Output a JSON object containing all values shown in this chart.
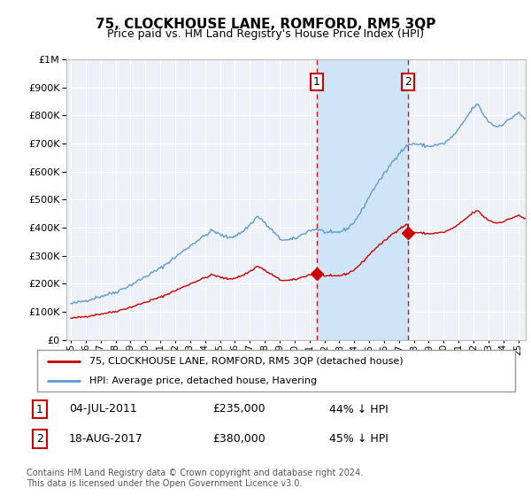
{
  "title": "75, CLOCKHOUSE LANE, ROMFORD, RM5 3QP",
  "subtitle": "Price paid vs. HM Land Registry's House Price Index (HPI)",
  "hpi_color": "#5b9bd5",
  "sale_color": "#cc0000",
  "vline_color": "#cc0000",
  "legend_line1": "75, CLOCKHOUSE LANE, ROMFORD, RM5 3QP (detached house)",
  "legend_line2": "HPI: Average price, detached house, Havering",
  "annotation1_date": "04-JUL-2011",
  "annotation1_price": "£235,000",
  "annotation1_hpi": "44% ↓ HPI",
  "annotation2_date": "18-AUG-2017",
  "annotation2_price": "£380,000",
  "annotation2_hpi": "45% ↓ HPI",
  "footer": "Contains HM Land Registry data © Crown copyright and database right 2024.\nThis data is licensed under the Open Government Licence v3.0.",
  "sale1_year": 2011.5,
  "sale1_value": 235000,
  "sale2_year": 2017.62,
  "sale2_value": 380000,
  "ylim_min": 0,
  "ylim_max": 1000000,
  "xmin": 1994.7,
  "xmax": 2025.5,
  "plot_bg_color": "#eef2f8",
  "fill_between_color": "#d0e4f7"
}
